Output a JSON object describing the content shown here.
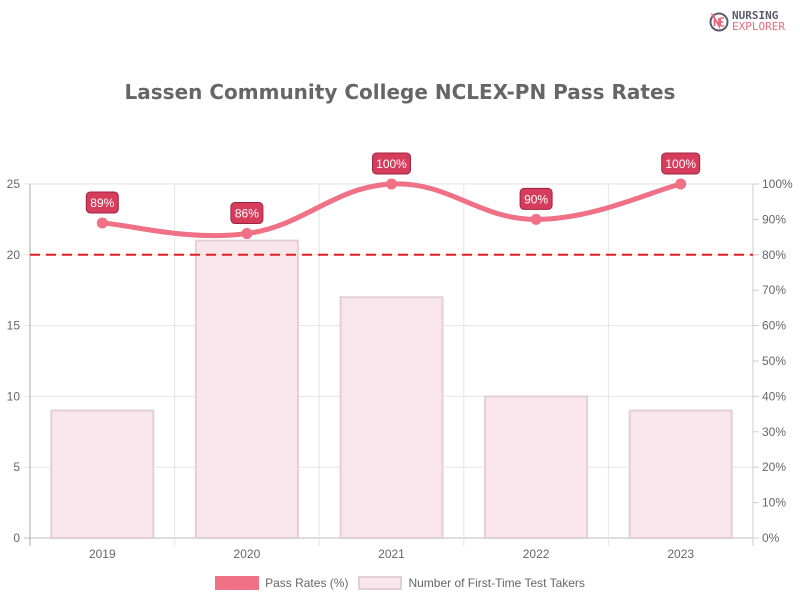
{
  "brand": {
    "line1": "NURSING",
    "line2": "EXPLORER",
    "mark": "NE"
  },
  "title": "Lassen Community College NCLEX-PN Pass Rates",
  "legend": {
    "line_label": "Pass Rates (%)",
    "bar_label": "Number of First-Time Test Takers"
  },
  "colors": {
    "line": "#f07086",
    "bar_fill": "#f8e6ec",
    "bar_border": "#e2d0d6",
    "label_bg": "#d63d5c",
    "threshold": "#e02020",
    "grid": "#e5e5e5",
    "axis_text": "#666666"
  },
  "axes": {
    "left_ticks": [
      "0",
      "5",
      "10",
      "15",
      "20",
      "25"
    ],
    "right_ticks": [
      "0%",
      "10%",
      "20%",
      "30%",
      "40%",
      "50%",
      "60%",
      "70%",
      "80%",
      "90%",
      "100%"
    ],
    "x_ticks": [
      "2019",
      "2020",
      "2021",
      "2022",
      "2023"
    ]
  },
  "data_labels": [
    "89%",
    "86%",
    "100%",
    "90%",
    "100%"
  ],
  "chart_data": {
    "type": "bar",
    "title": "Lassen Community College NCLEX-PN Pass Rates",
    "categories": [
      "2019",
      "2020",
      "2021",
      "2022",
      "2023"
    ],
    "series": [
      {
        "name": "Pass Rates (%)",
        "type": "line",
        "axis": "right",
        "values": [
          89,
          86,
          100,
          90,
          100
        ]
      },
      {
        "name": "Number of First-Time Test Takers",
        "type": "bar",
        "axis": "left",
        "values": [
          9,
          21,
          17,
          10,
          9
        ]
      }
    ],
    "annotations": [
      {
        "type": "horizontal-dashed-line",
        "axis": "right",
        "value": 80
      }
    ],
    "xlabel": "",
    "ylabel_left": "",
    "ylabel_right": "",
    "ylim_left": [
      0,
      25
    ],
    "ylim_right": [
      0,
      100
    ],
    "grid": true,
    "legend_position": "bottom"
  }
}
